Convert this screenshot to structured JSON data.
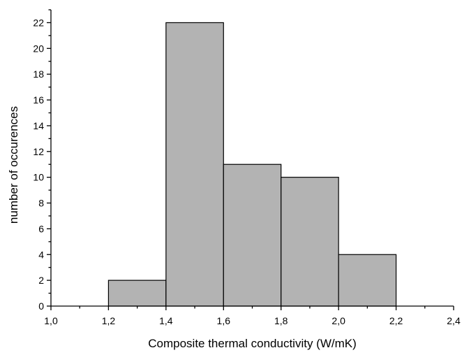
{
  "chart_data": {
    "type": "bar",
    "title": "",
    "xlabel": "Composite thermal conductivity (W/mK)",
    "ylabel": "number of occurences",
    "bins": [
      {
        "x0": 1.2,
        "x1": 1.4,
        "value": 2
      },
      {
        "x0": 1.4,
        "x1": 1.6,
        "value": 22
      },
      {
        "x0": 1.6,
        "x1": 1.8,
        "value": 11
      },
      {
        "x0": 1.8,
        "x1": 2.0,
        "value": 10
      },
      {
        "x0": 2.0,
        "x1": 2.2,
        "value": 4
      }
    ],
    "xlim": [
      1.0,
      2.4
    ],
    "ylim": [
      0,
      23
    ],
    "xticks": [
      1.0,
      1.2,
      1.4,
      1.6,
      1.8,
      2.0,
      2.2,
      2.4
    ],
    "xtick_labels": [
      "1,0",
      "1,2",
      "1,4",
      "1,6",
      "1,8",
      "2,0",
      "2,2",
      "2,4"
    ],
    "yticks": [
      0,
      2,
      4,
      6,
      8,
      10,
      12,
      14,
      16,
      18,
      20,
      22
    ],
    "ytick_labels": [
      "0",
      "2",
      "4",
      "6",
      "8",
      "10",
      "12",
      "14",
      "16",
      "18",
      "20",
      "22"
    ],
    "grid": false,
    "legend": "none",
    "bar_color": "#b3b3b3",
    "edge_color": "#000000"
  }
}
